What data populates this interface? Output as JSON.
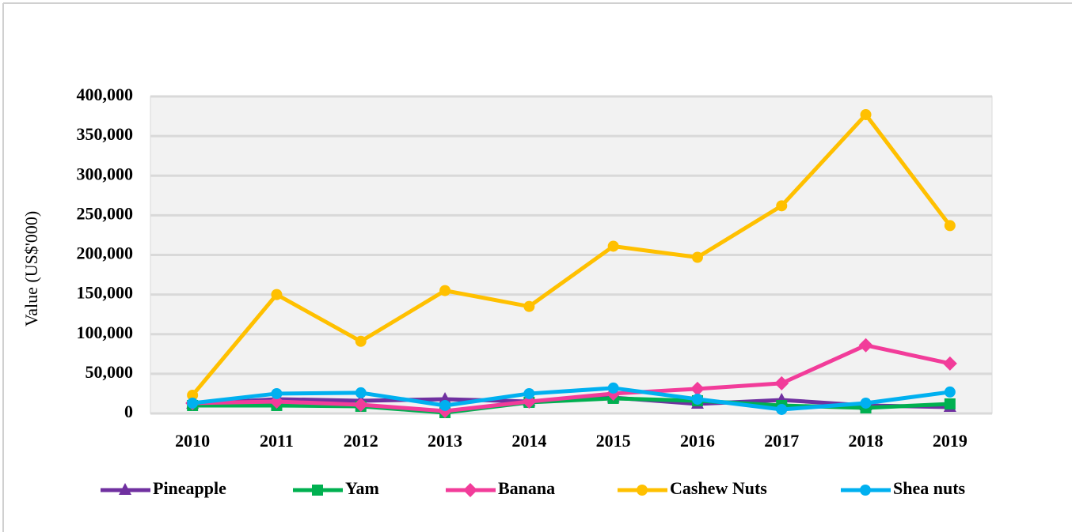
{
  "chart_data": {
    "type": "line",
    "y_label": "Value (US$'000)",
    "categories": [
      "2010",
      "2011",
      "2012",
      "2013",
      "2014",
      "2015",
      "2016",
      "2017",
      "2018",
      "2019"
    ],
    "ylim": [
      0,
      400000
    ],
    "yticks": [
      0,
      {
        "value": 50000,
        "label": "50,000"
      },
      {
        "value": 100000,
        "label": "100,000"
      },
      {
        "value": 150000,
        "label": "150,000"
      },
      {
        "value": 200000,
        "label": "200,000"
      },
      {
        "value": 250000,
        "label": "250,000"
      },
      {
        "value": 300000,
        "label": "300,000"
      },
      {
        "value": 350000,
        "label": "350,000"
      },
      {
        "value": 400000,
        "label": "400,000"
      }
    ],
    "grid": true,
    "legend": "bottom",
    "series": [
      {
        "name": "Pineapple",
        "color": "#7030a0",
        "marker": "triangle",
        "values": [
          12000,
          18000,
          16000,
          18000,
          15000,
          20000,
          12000,
          17000,
          10000,
          8000
        ]
      },
      {
        "name": "Yam",
        "color": "#00b050",
        "marker": "square",
        "values": [
          10000,
          10000,
          9000,
          1000,
          14000,
          19000,
          16000,
          10000,
          7000,
          12000
        ]
      },
      {
        "name": "Banana",
        "color": "#f23c9a",
        "marker": "diamond",
        "values": [
          13000,
          15000,
          11000,
          3000,
          15000,
          25000,
          31000,
          38000,
          86000,
          63000
        ]
      },
      {
        "name": "Cashew Nuts",
        "color": "#ffc000",
        "marker": "circle",
        "values": [
          23000,
          150000,
          91000,
          155000,
          135000,
          211000,
          197000,
          262000,
          377000,
          237000
        ]
      },
      {
        "name": "Shea nuts",
        "color": "#00b0f0",
        "marker": "circle",
        "values": [
          13000,
          25000,
          26000,
          10000,
          25000,
          32000,
          18000,
          5000,
          13000,
          27000
        ]
      }
    ]
  }
}
